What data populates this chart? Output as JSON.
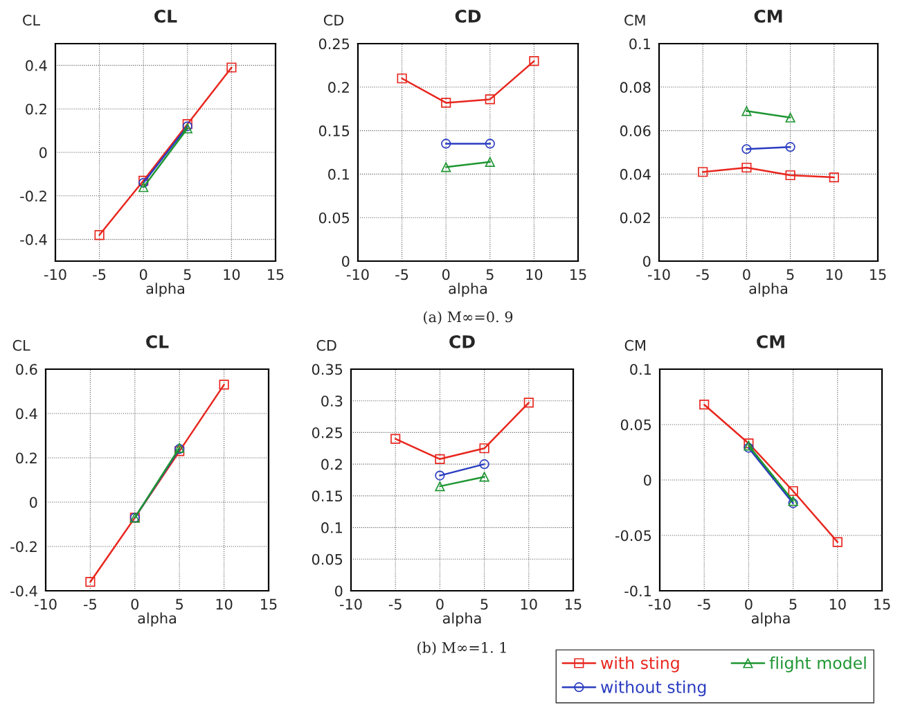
{
  "chart_data": [
    {
      "type": "line",
      "title": "CL",
      "ylabel": "CL",
      "xlabel": "alpha",
      "xlim": [
        -10,
        15
      ],
      "xticks": [
        -10,
        -5,
        0,
        5,
        10,
        15
      ],
      "ylim": [
        -0.5,
        0.5
      ],
      "yticks": [
        -0.4,
        -0.2,
        0,
        0.2,
        0.4
      ],
      "grid": true,
      "series": [
        {
          "color": "#e8261e",
          "marker": "square",
          "x": [
            -5,
            0,
            5,
            10
          ],
          "values": [
            -0.38,
            -0.13,
            0.13,
            0.39
          ]
        },
        {
          "color": "#2a3cc0",
          "marker": "circle",
          "x": [
            0,
            5
          ],
          "values": [
            -0.14,
            0.12
          ]
        },
        {
          "color": "#1e9632",
          "marker": "triangle",
          "x": [
            0,
            5
          ],
          "values": [
            -0.16,
            0.11
          ]
        }
      ]
    },
    {
      "type": "line",
      "title": "CD",
      "ylabel": "CD",
      "xlabel": "alpha",
      "xlim": [
        -10,
        15
      ],
      "xticks": [
        -10,
        -5,
        0,
        5,
        10,
        15
      ],
      "ylim": [
        0,
        0.25
      ],
      "yticks": [
        0,
        0.05,
        0.1,
        0.15,
        0.2,
        0.25
      ],
      "grid": true,
      "annotations": [
        "(a) M∞=0. 9"
      ],
      "series": [
        {
          "color": "#e8261e",
          "marker": "square",
          "x": [
            -5,
            0,
            5,
            10
          ],
          "values": [
            0.21,
            0.182,
            0.186,
            0.23
          ]
        },
        {
          "color": "#2a3cc0",
          "marker": "circle",
          "x": [
            0,
            5
          ],
          "values": [
            0.135,
            0.135
          ]
        },
        {
          "color": "#1e9632",
          "marker": "triangle",
          "x": [
            0,
            5
          ],
          "values": [
            0.108,
            0.114
          ]
        }
      ]
    },
    {
      "type": "line",
      "title": "CM",
      "ylabel": "CM",
      "xlabel": "alpha",
      "xlim": [
        -10,
        15
      ],
      "xticks": [
        -10,
        -5,
        0,
        5,
        10,
        15
      ],
      "ylim": [
        0,
        0.1
      ],
      "yticks": [
        0,
        0.02,
        0.04,
        0.06,
        0.08,
        0.1
      ],
      "grid": true,
      "series": [
        {
          "color": "#e8261e",
          "marker": "square",
          "x": [
            -5,
            0,
            5,
            10
          ],
          "values": [
            0.041,
            0.043,
            0.0395,
            0.0385
          ]
        },
        {
          "color": "#2a3cc0",
          "marker": "circle",
          "x": [
            0,
            5
          ],
          "values": [
            0.0515,
            0.0525
          ]
        },
        {
          "color": "#1e9632",
          "marker": "triangle",
          "x": [
            0,
            5
          ],
          "values": [
            0.069,
            0.066
          ]
        }
      ]
    },
    {
      "type": "line",
      "title": "CL",
      "ylabel": "CL",
      "xlabel": "alpha",
      "xlim": [
        -10,
        15
      ],
      "xticks": [
        -10,
        -5,
        0,
        5,
        10,
        15
      ],
      "ylim": [
        -0.4,
        0.6
      ],
      "yticks": [
        -0.4,
        -0.2,
        0,
        0.2,
        0.4,
        0.6
      ],
      "grid": true,
      "series": [
        {
          "color": "#e8261e",
          "marker": "square",
          "x": [
            -5,
            0,
            5,
            10
          ],
          "values": [
            -0.36,
            -0.07,
            0.23,
            0.53
          ]
        },
        {
          "color": "#2a3cc0",
          "marker": "circle",
          "x": [
            0,
            5
          ],
          "values": [
            -0.07,
            0.24
          ]
        },
        {
          "color": "#1e9632",
          "marker": "triangle",
          "x": [
            0,
            5
          ],
          "values": [
            -0.07,
            0.245
          ]
        }
      ]
    },
    {
      "type": "line",
      "title": "CD",
      "ylabel": "CD",
      "xlabel": "alpha",
      "xlim": [
        -10,
        15
      ],
      "xticks": [
        -10,
        -5,
        0,
        5,
        10,
        15
      ],
      "ylim": [
        0,
        0.35
      ],
      "yticks": [
        0,
        0.05,
        0.1,
        0.15,
        0.2,
        0.25,
        0.3,
        0.35
      ],
      "grid": true,
      "annotations": [
        "(b) M∞=1. 1"
      ],
      "series": [
        {
          "color": "#e8261e",
          "marker": "square",
          "x": [
            -5,
            0,
            5,
            10
          ],
          "values": [
            0.24,
            0.208,
            0.225,
            0.297
          ]
        },
        {
          "color": "#2a3cc0",
          "marker": "circle",
          "x": [
            0,
            5
          ],
          "values": [
            0.182,
            0.2
          ]
        },
        {
          "color": "#1e9632",
          "marker": "triangle",
          "x": [
            0,
            5
          ],
          "values": [
            0.165,
            0.18
          ]
        }
      ]
    },
    {
      "type": "line",
      "title": "CM",
      "ylabel": "CM",
      "xlabel": "alpha",
      "xlim": [
        -10,
        15
      ],
      "xticks": [
        -10,
        -5,
        0,
        5,
        10,
        15
      ],
      "ylim": [
        -0.1,
        0.1
      ],
      "yticks": [
        -0.1,
        -0.05,
        0,
        0.05,
        0.1
      ],
      "grid": true,
      "legend": "bottom",
      "series": [
        {
          "name": "with sting",
          "color": "#e8261e",
          "marker": "square",
          "x": [
            -5,
            0,
            5,
            10
          ],
          "values": [
            0.068,
            0.033,
            -0.01,
            -0.056
          ]
        },
        {
          "name": "without sting",
          "color": "#2a3cc0",
          "marker": "circle",
          "x": [
            0,
            5
          ],
          "values": [
            0.029,
            -0.021
          ]
        },
        {
          "name": "flight model",
          "color": "#1e9632",
          "marker": "triangle",
          "x": [
            0,
            5
          ],
          "values": [
            0.031,
            -0.019
          ]
        }
      ]
    }
  ]
}
